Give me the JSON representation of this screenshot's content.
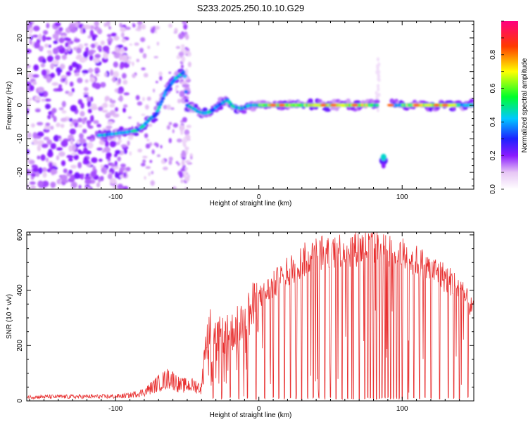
{
  "chart_data": [
    {
      "type": "heatmap",
      "title": "S233.2025.250.10.10.G29",
      "xlabel": "Height of straight line (km)",
      "ylabel": "Frequency (Hz)",
      "xlim": [
        -162,
        150
      ],
      "ylim": [
        -25,
        25
      ],
      "xticks": [
        -100,
        0,
        100
      ],
      "yticks": [
        -20,
        -10,
        0,
        10,
        20
      ],
      "colorbar": {
        "label": "Normalized spectral amplitude",
        "range": [
          0,
          1
        ],
        "ticks": [
          0.0,
          0.2,
          0.4,
          0.6,
          0.8
        ],
        "tick_labels": [
          "0.0",
          "0.2",
          "0.4",
          "0.6",
          "0.8"
        ]
      },
      "ridge": {
        "description_x_km": [
          -110,
          -100,
          -92,
          -85,
          -80,
          -76,
          -72,
          -68,
          -65,
          -62,
          -58,
          -55,
          -52,
          -50,
          -46,
          -42,
          -38,
          -34,
          -28,
          -22,
          -18,
          -12,
          -6,
          0,
          20,
          40,
          60,
          80
        ],
        "frequency_hz": [
          -9,
          -8.5,
          -8,
          -7.5,
          -6,
          -4,
          -3,
          1,
          4,
          6,
          8,
          9,
          10,
          0,
          -1,
          -2,
          -2.5,
          -2,
          0,
          1.5,
          -0.5,
          -1,
          0,
          0,
          0,
          0,
          0,
          0
        ],
        "gaps_km": [
          [
            83,
            92
          ]
        ],
        "secondary_blob": {
          "x_km": 87,
          "frequency_hz": -15.5
        }
      }
    },
    {
      "type": "line",
      "xlabel": "Height of straight line (km)",
      "ylabel": "SNR (10 * v/v)",
      "xlim": [
        -162,
        150
      ],
      "ylim": [
        0,
        610
      ],
      "xticks": [
        -100,
        0,
        100
      ],
      "yticks": [
        0,
        200,
        400,
        600
      ],
      "envelope": {
        "x_km": [
          -162,
          -100,
          -90,
          -80,
          -70,
          -62,
          -55,
          -45,
          -40,
          -38,
          -35,
          -30,
          -20,
          -10,
          0,
          10,
          20,
          30,
          40,
          50,
          60,
          70,
          80,
          90,
          100,
          110,
          120,
          130,
          140,
          150
        ],
        "snr": [
          18,
          20,
          25,
          40,
          80,
          105,
          70,
          70,
          55,
          200,
          290,
          250,
          260,
          320,
          380,
          430,
          480,
          520,
          550,
          560,
          565,
          570,
          570,
          560,
          545,
          520,
          490,
          460,
          420,
          330
        ]
      },
      "dropouts_approx_x_km": [
        -32,
        -26,
        -20,
        -14,
        -8,
        -2,
        4,
        10,
        14,
        18,
        22,
        26,
        30,
        34,
        38,
        42,
        46,
        50,
        54,
        58,
        62,
        66,
        70,
        74,
        76,
        78,
        80,
        82,
        84,
        86,
        88,
        90,
        92,
        94,
        96,
        98,
        100,
        104,
        108,
        112,
        116,
        120,
        126,
        132,
        136,
        140,
        146
      ],
      "line_color": "#e83030"
    }
  ]
}
